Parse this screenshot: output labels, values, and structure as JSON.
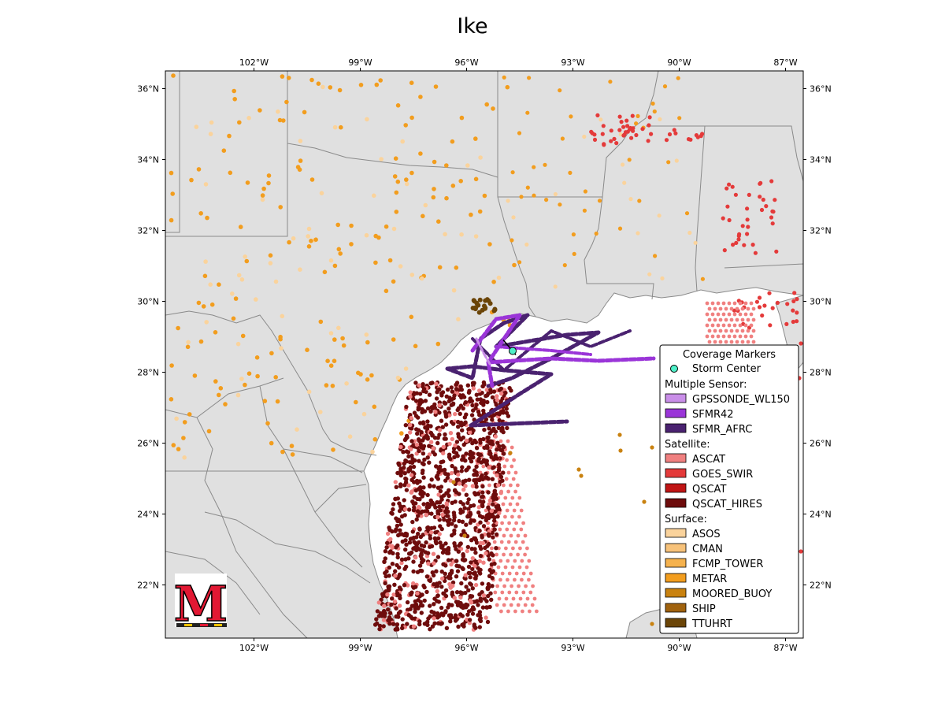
{
  "title": "Ike",
  "map": {
    "extent": {
      "lon_min": -104.5,
      "lon_max": -86.5,
      "lat_min": 20.5,
      "lat_max": 36.5
    },
    "lon_ticks": [
      {
        "lon": -102,
        "label": "102°W"
      },
      {
        "lon": -99,
        "label": "99°W"
      },
      {
        "lon": -96,
        "label": "96°W"
      },
      {
        "lon": -93,
        "label": "93°W"
      },
      {
        "lon": -90,
        "label": "90°W"
      },
      {
        "lon": -87,
        "label": "87°W"
      }
    ],
    "lat_ticks": [
      {
        "lat": 36,
        "label": "36°N"
      },
      {
        "lat": 34,
        "label": "34°N"
      },
      {
        "lat": 32,
        "label": "32°N"
      },
      {
        "lat": 30,
        "label": "30°N"
      },
      {
        "lat": 28,
        "label": "28°N"
      },
      {
        "lat": 26,
        "label": "26°N"
      },
      {
        "lat": 24,
        "label": "24°N"
      },
      {
        "lat": 22,
        "label": "22°N"
      }
    ],
    "land_color": "#e0e0e0",
    "border_color": "#8a8a8a",
    "ocean_color": "#ffffff"
  },
  "storm_center": {
    "lon": -94.7,
    "lat": 28.6,
    "color": "#4ef0c8"
  },
  "legend": {
    "title": "Coverage Markers",
    "storm_label": "Storm Center",
    "groups": [
      {
        "heading": "Multiple Sensor:",
        "items": [
          {
            "label": "GPSSONDE_WL150",
            "color": "#c98ee8"
          },
          {
            "label": "SFMR42",
            "color": "#9a35d8"
          },
          {
            "label": "SFMR_AFRC",
            "color": "#4a2270"
          }
        ]
      },
      {
        "heading": "Satellite:",
        "items": [
          {
            "label": "ASCAT",
            "color": "#f08080"
          },
          {
            "label": "GOES_SWIR",
            "color": "#e43a3a"
          },
          {
            "label": "QSCAT",
            "color": "#c01515"
          },
          {
            "label": "QSCAT_HIRES",
            "color": "#6e0c0c"
          }
        ]
      },
      {
        "heading": "Surface:",
        "items": [
          {
            "label": "ASOS",
            "color": "#fad39c"
          },
          {
            "label": "CMAN",
            "color": "#f7c27a"
          },
          {
            "label": "FCMP_TOWER",
            "color": "#f5b24e"
          },
          {
            "label": "METAR",
            "color": "#f29d1e"
          },
          {
            "label": "MOORED_BUOY",
            "color": "#c98210"
          },
          {
            "label": "SHIP",
            "color": "#a0620e"
          },
          {
            "label": "TTUHRT",
            "color": "#6b4508"
          }
        ]
      }
    ]
  },
  "logo": {
    "letter": "M",
    "color": "#e21833"
  }
}
